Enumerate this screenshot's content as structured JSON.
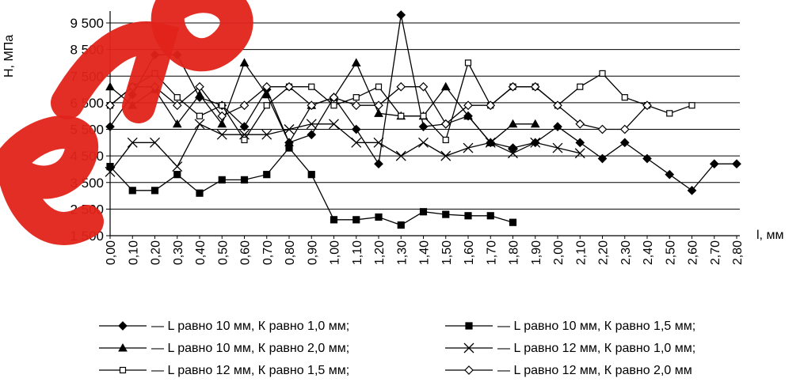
{
  "watermark": {
    "text": "eлО",
    "color": "#e2231a"
  },
  "chart_data": {
    "type": "line",
    "ylabel": "Н, МПа",
    "xlabel": "l, мм",
    "ylim": [
      1500,
      9500
    ],
    "yticks": [
      1500,
      2500,
      3500,
      4500,
      5500,
      6500,
      7500,
      8500,
      9500
    ],
    "ytick_labels": [
      "1 500",
      "2 500",
      "3 500",
      "4 500",
      "5 500",
      "6 500",
      "7 500",
      "8 500",
      "9 500"
    ],
    "categories": [
      "0,00",
      "0,10",
      "0,20",
      "0,30",
      "0,40",
      "0,50",
      "0,60",
      "0,70",
      "0,80",
      "0,90",
      "1,00",
      "1,10",
      "1,20",
      "1,30",
      "1,40",
      "1,50",
      "1,60",
      "1,70",
      "1,80",
      "1,90",
      "2,00",
      "2,10",
      "2,20",
      "2,30",
      "2,40",
      "2,50",
      "2,60",
      "2,70",
      "2,80"
    ],
    "grid": "horizontal",
    "legend_position": "bottom",
    "series": [
      {
        "name": "L равно 10 мм, К равно 1,0 мм;",
        "marker": "diamond-filled",
        "values": [
          5600,
          6800,
          8300,
          8300,
          6700,
          6400,
          5600,
          7000,
          5000,
          5300,
          6700,
          5500,
          4200,
          9800,
          5600,
          5700,
          6000,
          5000,
          4800,
          5000,
          5600,
          5000,
          4400,
          5000,
          4400,
          3800,
          3200,
          4200,
          4200
        ]
      },
      {
        "name": "L равно 10 мм, К равно 1,5 мм;",
        "marker": "square-filled",
        "values": [
          4100,
          3200,
          3200,
          3800,
          3100,
          3600,
          3600,
          3800,
          4800,
          3800,
          2100,
          2100,
          2200,
          1900,
          2400,
          2300,
          2250,
          2250,
          2000,
          null,
          null,
          null,
          null,
          null,
          null,
          null,
          null,
          null,
          null
        ]
      },
      {
        "name": "L равно 10 мм, К равно 2,0 мм;",
        "marker": "triangle-filled",
        "values": [
          7100,
          6400,
          7000,
          5700,
          6800,
          5700,
          8000,
          6800,
          5000,
          6400,
          6700,
          8000,
          6100,
          6000,
          6000,
          7100,
          6000,
          5000,
          5700,
          5700,
          null,
          null,
          null,
          null,
          null,
          null,
          null,
          null,
          null
        ]
      },
      {
        "name": "L равно 12 мм, К равно 1,0 мм;",
        "marker": "x",
        "values": [
          3900,
          5000,
          5000,
          4100,
          5700,
          5300,
          5300,
          5300,
          5500,
          5700,
          5700,
          5000,
          5000,
          4500,
          5000,
          4500,
          4800,
          5000,
          4600,
          5000,
          4800,
          4600,
          null,
          null,
          null,
          null,
          null,
          null,
          null
        ]
      },
      {
        "name": "L равно 12 мм, К равно 1,5 мм;",
        "marker": "square-open",
        "values": [
          6400,
          7100,
          7600,
          6700,
          6000,
          6400,
          5100,
          6400,
          7100,
          7100,
          6400,
          6700,
          7100,
          6000,
          6000,
          5100,
          8000,
          6400,
          7100,
          7100,
          6400,
          7100,
          7600,
          6700,
          6400,
          6100,
          6400,
          null,
          null
        ]
      },
      {
        "name": "L равно 12 мм, К равно 2,0 мм",
        "marker": "diamond-open",
        "values": [
          6400,
          7100,
          7100,
          6400,
          7100,
          6000,
          6400,
          7100,
          7100,
          6400,
          6700,
          6400,
          6400,
          7100,
          7100,
          5700,
          6400,
          6400,
          7100,
          7100,
          6400,
          5700,
          5500,
          5500,
          6400,
          null,
          null,
          null,
          null
        ]
      }
    ]
  }
}
